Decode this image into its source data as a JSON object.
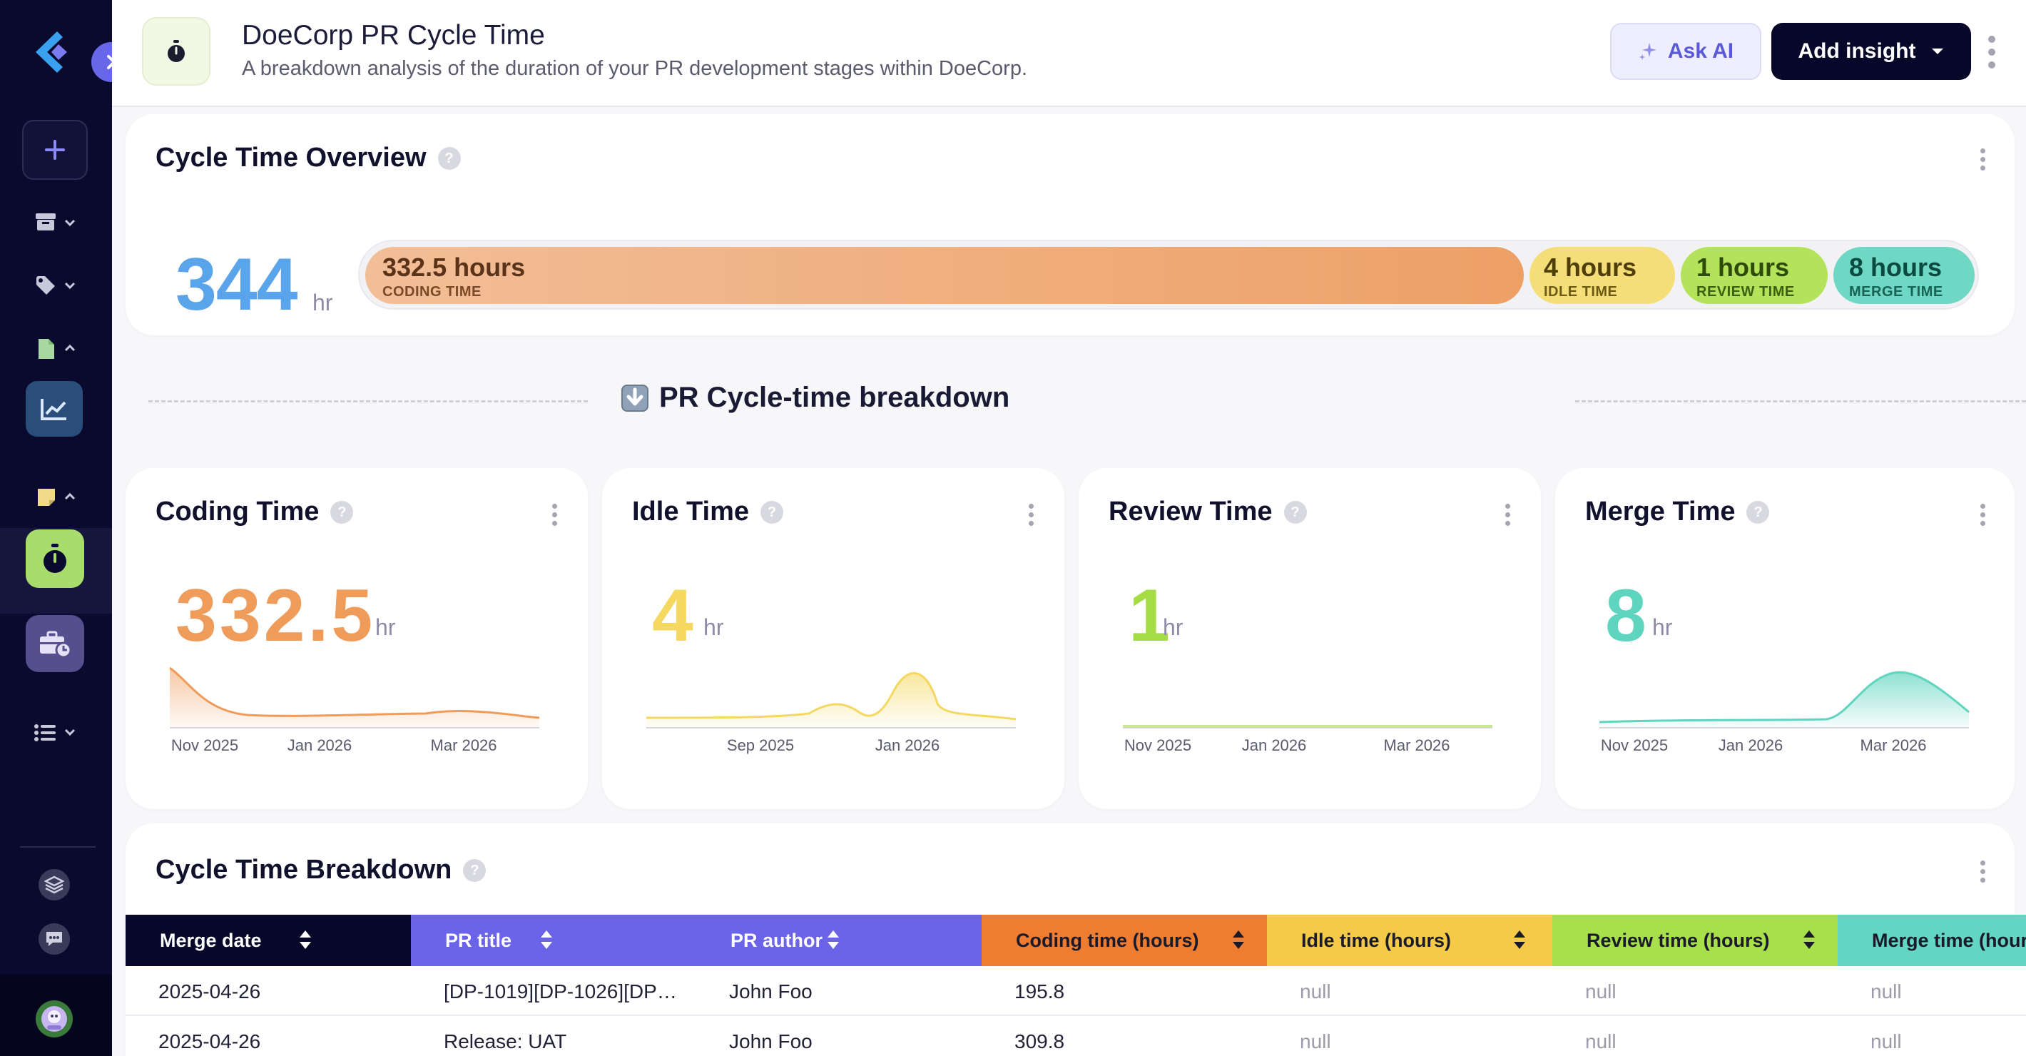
{
  "header": {
    "title": "DoeCorp PR Cycle Time",
    "subtitle": "A breakdown analysis of the duration of your PR development stages within DoeCorp.",
    "ask_ai_label": "Ask AI",
    "add_insight_label": "Add insight"
  },
  "overview": {
    "title": "Cycle Time Overview",
    "total_value": "344",
    "total_unit": "hr",
    "segments": [
      {
        "value": "332.5 hours",
        "label": "CODING TIME"
      },
      {
        "value": "4 hours",
        "label": "IDLE TIME"
      },
      {
        "value": "1 hours",
        "label": "REVIEW TIME"
      },
      {
        "value": "8 hours",
        "label": "MERGE TIME"
      }
    ]
  },
  "breakdown_heading": "PR Cycle-time breakdown",
  "metric_cards": [
    {
      "title": "Coding Time",
      "value": "332.5",
      "unit": "hr",
      "color": "#ef9b5a",
      "ticks": [
        "Nov 2025",
        "Jan 2026",
        "Mar 2026"
      ]
    },
    {
      "title": "Idle Time",
      "value": "4",
      "unit": "hr",
      "color": "#f4d860",
      "ticks": [
        "Sep 2025",
        "Jan 2026"
      ]
    },
    {
      "title": "Review Time",
      "value": "1",
      "unit": "hr",
      "color": "#a5dc44",
      "ticks": [
        "Nov 2025",
        "Jan 2026",
        "Mar 2026"
      ]
    },
    {
      "title": "Merge Time",
      "value": "8",
      "unit": "hr",
      "color": "#5fd4bf",
      "ticks": [
        "Nov 2025",
        "Jan 2026",
        "Mar 2026"
      ]
    }
  ],
  "table": {
    "title": "Cycle Time Breakdown",
    "columns": [
      "Merge date",
      "PR title",
      "PR author",
      "Coding time (hours)",
      "Idle time (hours)",
      "Review time (hours)",
      "Merge time (hours)"
    ],
    "rows": [
      [
        "2025-04-26",
        "[DP-1019][DP-1026][DP…",
        "John Foo",
        "195.8",
        "null",
        "null",
        "null"
      ],
      [
        "2025-04-26",
        "Release: UAT",
        "John Foo",
        "309.8",
        "null",
        "null",
        "null"
      ]
    ]
  },
  "icons": {
    "sidebar": [
      "logo-icon",
      "plus-icon",
      "archive-icon",
      "tag-icon",
      "file-icon",
      "chart-icon",
      "note-icon",
      "stopwatch-icon",
      "briefcase-clock-icon",
      "list-icon",
      "layers-icon",
      "chat-icon",
      "avatar"
    ],
    "header": "stopwatch-icon"
  }
}
